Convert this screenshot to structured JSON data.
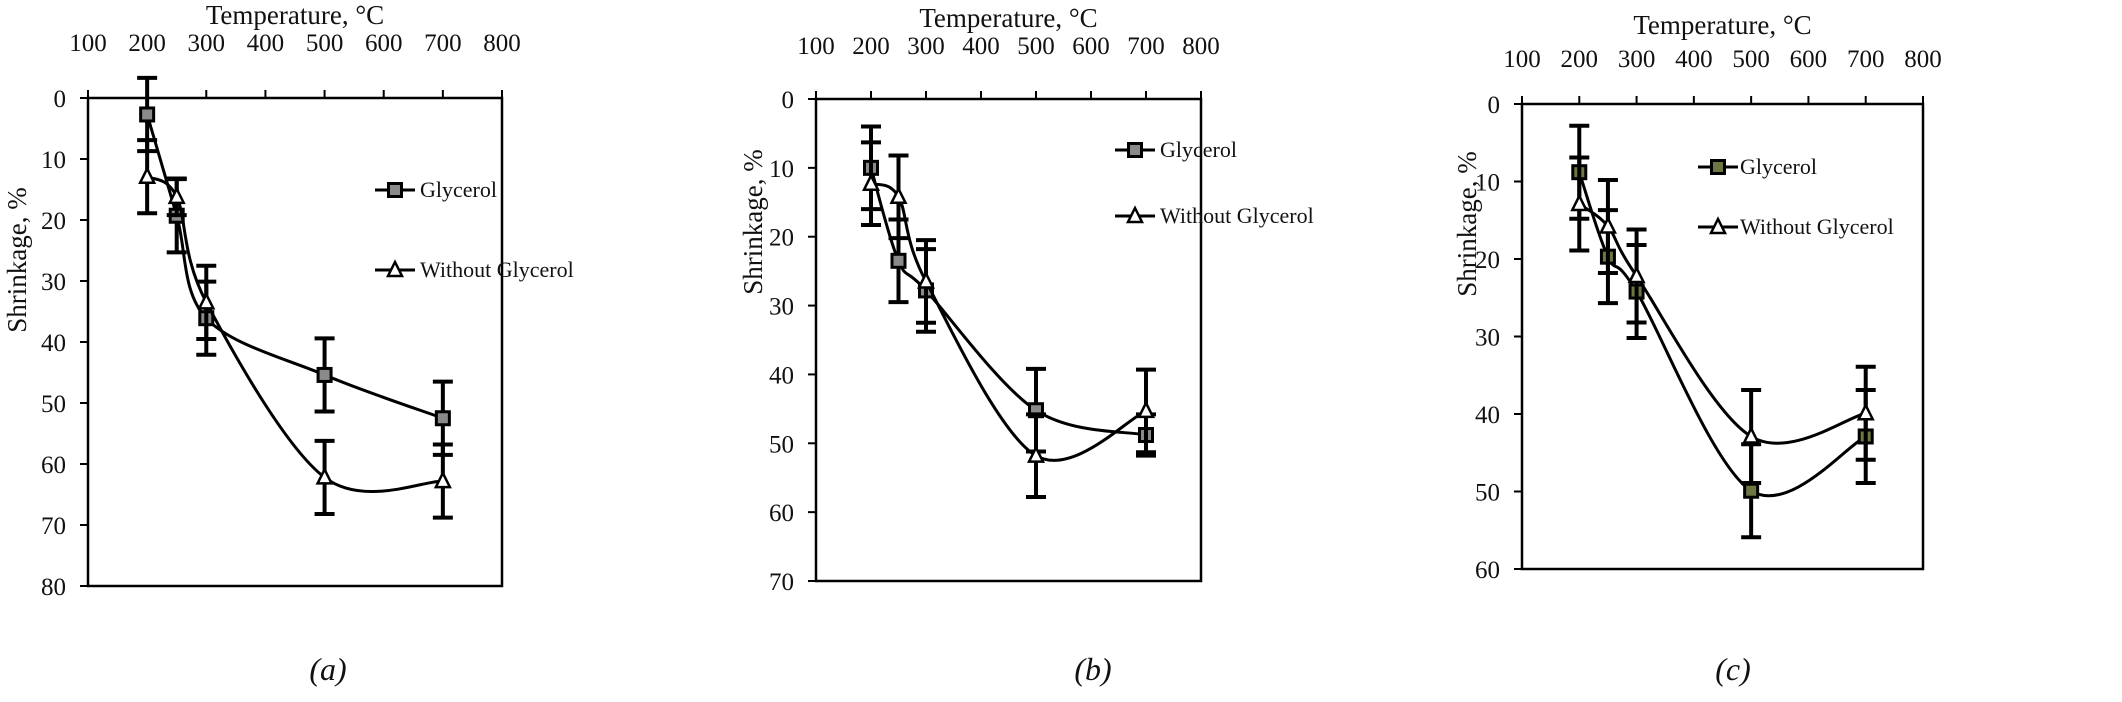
{
  "chart_data": [
    {
      "type": "line",
      "panel_caption": "(a)",
      "xlabel": "Temperature, °C",
      "ylabel": "Shrinkage, %",
      "x_ticks": [
        100,
        200,
        300,
        400,
        500,
        600,
        700,
        800
      ],
      "y_ticks": [
        0,
        10,
        20,
        30,
        40,
        50,
        60,
        70,
        80
      ],
      "xlim": [
        100,
        800
      ],
      "ylim": [
        0,
        80
      ],
      "y_inverted": true,
      "x_axis_position": "top",
      "grid": false,
      "legend_position": "upper-right-inside",
      "x": [
        200,
        250,
        300,
        500,
        700
      ],
      "series": [
        {
          "name": "Glycerol",
          "marker": "square",
          "marker_fill": "#8a8a8a",
          "smoothed": true,
          "values": [
            2.7,
            19.3,
            36.1,
            45.4,
            52.5
          ],
          "errors": [
            6,
            6,
            6,
            6,
            6
          ]
        },
        {
          "name": "Without Glycerol",
          "marker": "triangle",
          "marker_fill": "#ffffff",
          "smoothed": true,
          "values": [
            12.9,
            16.2,
            33.5,
            62.2,
            62.8
          ],
          "errors": [
            6,
            3,
            6,
            6,
            6
          ]
        }
      ]
    },
    {
      "type": "line",
      "panel_caption": "(b)",
      "xlabel": "Temperature, °C",
      "ylabel": "Shrinkage, %",
      "x_ticks": [
        100,
        200,
        300,
        400,
        500,
        600,
        700,
        800
      ],
      "y_ticks": [
        0,
        10,
        20,
        30,
        40,
        50,
        60,
        70
      ],
      "xlim": [
        100,
        800
      ],
      "ylim": [
        0,
        70
      ],
      "y_inverted": true,
      "x_axis_position": "top",
      "grid": false,
      "legend_position": "upper-right-inside",
      "x": [
        200,
        250,
        300,
        500,
        700
      ],
      "series": [
        {
          "name": "Glycerol",
          "marker": "square",
          "marker_fill": "#8a8a8a",
          "smoothed": true,
          "values": [
            10.0,
            23.5,
            27.8,
            45.2,
            48.8
          ],
          "errors": [
            6,
            6,
            6,
            6,
            3
          ]
        },
        {
          "name": "Without Glycerol",
          "marker": "triangle",
          "marker_fill": "#ffffff",
          "smoothed": true,
          "values": [
            12.3,
            14.2,
            26.5,
            51.8,
            45.3
          ],
          "errors": [
            6,
            6,
            6,
            6,
            6
          ]
        }
      ]
    },
    {
      "type": "line",
      "panel_caption": "(c)",
      "xlabel": "Temperature, °C",
      "ylabel": "Shrinkage, %",
      "x_ticks": [
        100,
        200,
        300,
        400,
        500,
        600,
        700,
        800
      ],
      "y_ticks": [
        0,
        10,
        20,
        30,
        40,
        50,
        60
      ],
      "xlim": [
        100,
        800
      ],
      "ylim": [
        0,
        60
      ],
      "y_inverted": true,
      "x_axis_position": "top",
      "grid": false,
      "legend_position": "upper-right-inside",
      "x": [
        200,
        250,
        300,
        500,
        700
      ],
      "series": [
        {
          "name": "Glycerol",
          "marker": "square",
          "marker_fill": "#6e7641",
          "smoothed": true,
          "values": [
            8.8,
            19.7,
            24.2,
            49.9,
            42.9
          ],
          "errors": [
            6,
            6,
            6,
            6,
            6
          ]
        },
        {
          "name": "Without Glycerol",
          "marker": "triangle",
          "marker_fill": "#ffffff",
          "smoothed": true,
          "values": [
            12.9,
            15.8,
            22.2,
            42.9,
            39.9
          ],
          "errors": [
            6,
            6,
            6,
            6,
            6
          ]
        }
      ]
    }
  ]
}
